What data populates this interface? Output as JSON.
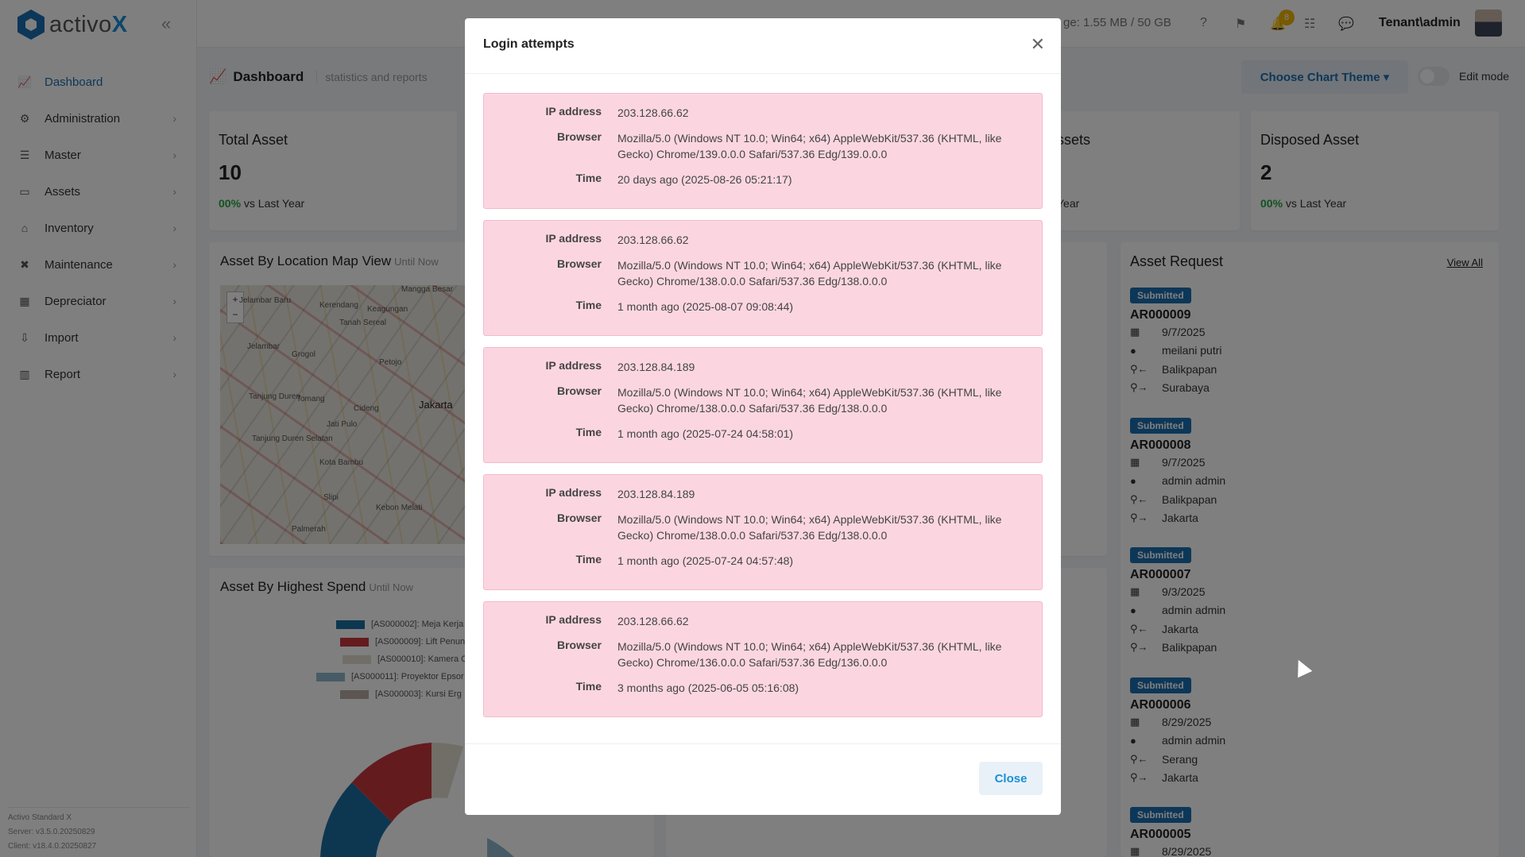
{
  "app": {
    "logo_prefix": "activo",
    "logo_suffix": "X"
  },
  "sidebar": {
    "items": [
      {
        "label": "Dashboard",
        "icon": "chart-line-icon",
        "active": true
      },
      {
        "label": "Administration",
        "icon": "cogs-icon"
      },
      {
        "label": "Master",
        "icon": "database-icon"
      },
      {
        "label": "Assets",
        "icon": "laptop-icon"
      },
      {
        "label": "Inventory",
        "icon": "warehouse-icon"
      },
      {
        "label": "Maintenance",
        "icon": "tools-icon"
      },
      {
        "label": "Depreciator",
        "icon": "calculator-icon"
      },
      {
        "label": "Import",
        "icon": "import-icon"
      },
      {
        "label": "Report",
        "icon": "bar-chart-icon"
      }
    ],
    "footer": {
      "edition": "Activo Standard X",
      "server": "Server: v3.5.0.20250829",
      "client": "Client: v18.4.0.20250827"
    }
  },
  "topbar": {
    "storage": "ge: 1.55 MB / 50 GB",
    "notifications": "8",
    "user": "Tenant\\admin"
  },
  "page": {
    "title": "Dashboard",
    "subtitle": "statistics and reports",
    "theme_button": "Choose Chart Theme",
    "edit_mode": "Edit mode"
  },
  "stats": [
    {
      "title": "Total Asset",
      "value": "10",
      "trend_pct": "00%",
      "trend_text": "vs Last Year"
    },
    {
      "title": "ssets",
      "value": "",
      "trend_pct": "",
      "trend_text": "Year"
    },
    {
      "title": "Disposed Asset",
      "value": "2",
      "trend_pct": "00%",
      "trend_text": "vs Last Year"
    }
  ],
  "map_section": {
    "title": "Asset By Location Map View",
    "subtitle": "Until Now",
    "labels": [
      "Jelambar Baru",
      "Kerendang",
      "Keagungan",
      "Mangga Besar",
      "Tanah Sereal",
      "Jelambar",
      "Grogol",
      "Petojo",
      "Tanjung Duren",
      "Tomang",
      "Cideng",
      "Jakarta",
      "Kota Bambu",
      "Jati Pulo",
      "Slipi",
      "Kebon Melati",
      "Palmerah",
      "Tanjung Duren Selatan"
    ]
  },
  "spend_section": {
    "title": "Asset By Highest Spend",
    "subtitle": "Until Now",
    "legend": [
      {
        "label": "[AS000002]: Meja Kerja",
        "color": "#1a6fa0"
      },
      {
        "label": "[AS000009]: Lift Penun",
        "color": "#c8373d"
      },
      {
        "label": "[AS000010]: Kamera C",
        "color": "#e2ddd1"
      },
      {
        "label": "[AS000011]: Proyektor Epsor",
        "color": "#8eb6cc"
      },
      {
        "label": "[AS000003]: Kursi Erg",
        "color": "#b9aaa2"
      }
    ]
  },
  "requests": {
    "title": "Asset Request",
    "view_all": "View All",
    "items": [
      {
        "status": "Submitted",
        "no": "AR000009",
        "date": "9/7/2025",
        "user": "meilani putri",
        "from": "Balikpapan",
        "to": "Surabaya"
      },
      {
        "status": "Submitted",
        "no": "AR000008",
        "date": "9/7/2025",
        "user": "admin admin",
        "from": "Balikpapan",
        "to": "Jakarta"
      },
      {
        "status": "Submitted",
        "no": "AR000007",
        "date": "9/3/2025",
        "user": "admin admin",
        "from": "Jakarta",
        "to": "Balikpapan"
      },
      {
        "status": "Submitted",
        "no": "AR000006",
        "date": "8/29/2025",
        "user": "admin admin",
        "from": "Serang",
        "to": "Jakarta"
      },
      {
        "status": "Submitted",
        "no": "AR000005",
        "date": "8/29/2025",
        "user": "",
        "from": "",
        "to": ""
      }
    ]
  },
  "modal": {
    "title": "Login attempts",
    "labels": {
      "ip": "IP address",
      "browser": "Browser",
      "time": "Time"
    },
    "attempts": [
      {
        "ip": "203.128.66.62",
        "browser": "Mozilla/5.0 (Windows NT 10.0; Win64; x64) AppleWebKit/537.36 (KHTML, like Gecko) Chrome/139.0.0.0 Safari/537.36 Edg/139.0.0.0",
        "time": "20 days ago (2025-08-26 05:21:17)"
      },
      {
        "ip": "203.128.66.62",
        "browser": "Mozilla/5.0 (Windows NT 10.0; Win64; x64) AppleWebKit/537.36 (KHTML, like Gecko) Chrome/138.0.0.0 Safari/537.36 Edg/138.0.0.0",
        "time": "1 month ago (2025-08-07 09:08:44)"
      },
      {
        "ip": "203.128.84.189",
        "browser": "Mozilla/5.0 (Windows NT 10.0; Win64; x64) AppleWebKit/537.36 (KHTML, like Gecko) Chrome/138.0.0.0 Safari/537.36 Edg/138.0.0.0",
        "time": "1 month ago (2025-07-24 04:58:01)"
      },
      {
        "ip": "203.128.84.189",
        "browser": "Mozilla/5.0 (Windows NT 10.0; Win64; x64) AppleWebKit/537.36 (KHTML, like Gecko) Chrome/138.0.0.0 Safari/537.36 Edg/138.0.0.0",
        "time": "1 month ago (2025-07-24 04:57:48)"
      },
      {
        "ip": "203.128.66.62",
        "browser": "Mozilla/5.0 (Windows NT 10.0; Win64; x64) AppleWebKit/537.36 (KHTML, like Gecko) Chrome/136.0.0.0 Safari/537.36 Edg/136.0.0.0",
        "time": "3 months ago (2025-06-05 05:16:08)"
      }
    ],
    "close_label": "Close"
  }
}
